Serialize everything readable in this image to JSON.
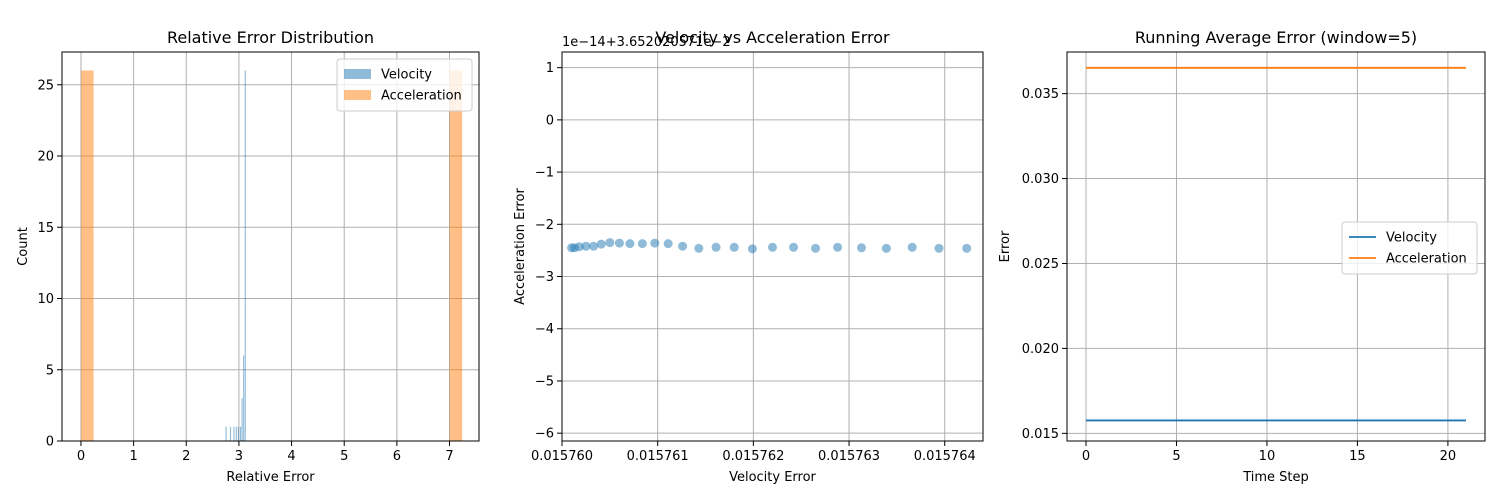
{
  "chart_data": [
    {
      "type": "bar",
      "title": "Relative Error Distribution",
      "xlabel": "Relative Error",
      "ylabel": "Count",
      "xlim": [
        -0.36,
        7.56
      ],
      "ylim": [
        0,
        27.3
      ],
      "xticks": [
        0,
        1,
        2,
        3,
        4,
        5,
        6,
        7
      ],
      "yticks": [
        0,
        5,
        10,
        15,
        20,
        25
      ],
      "grid": true,
      "legend": "top-right",
      "series": [
        {
          "name": "Velocity",
          "color": "#1f77b4",
          "opacity": 0.5,
          "bins": [
            {
              "x0": 2.745,
              "x1": 2.766,
              "count": 1
            },
            {
              "x0": 2.83,
              "x1": 2.851,
              "count": 1
            },
            {
              "x0": 2.895,
              "x1": 2.916,
              "count": 1
            },
            {
              "x0": 2.94,
              "x1": 2.961,
              "count": 1
            },
            {
              "x0": 2.98,
              "x1": 3.001,
              "count": 1
            },
            {
              "x0": 3.02,
              "x1": 3.041,
              "count": 1
            },
            {
              "x0": 3.05,
              "x1": 3.071,
              "count": 3
            },
            {
              "x0": 3.08,
              "x1": 3.101,
              "count": 6
            },
            {
              "x0": 3.11,
              "x1": 3.131,
              "count": 26
            }
          ]
        },
        {
          "name": "Acceleration",
          "color": "#ff7f0e",
          "opacity": 0.5,
          "bins": [
            {
              "x0": 0.0,
              "x1": 0.24,
              "count": 26
            },
            {
              "x0": 7.0,
              "x1": 7.24,
              "count": 26
            }
          ]
        }
      ]
    },
    {
      "type": "scatter",
      "title": "Velocity vs Acceleration Error",
      "xlabel": "Velocity Error",
      "ylabel": "Acceleration Error",
      "offset_text": "1e−14+3.652020571e−2",
      "xlim": [
        0.01576,
        0.0157644
      ],
      "ylim": [
        -6.15,
        1.3
      ],
      "xticks": [
        0.01576,
        0.015761,
        0.015762,
        0.015763,
        0.015764
      ],
      "xtick_labels": [
        "0.015760",
        "0.015761",
        "0.015762",
        "0.015763",
        "0.015764"
      ],
      "yticks": [
        -6,
        -5,
        -4,
        -3,
        -2,
        -1,
        0,
        1
      ],
      "ytick_labels": [
        "−6",
        "−5",
        "−4",
        "−3",
        "−2",
        "−1",
        "0",
        "1"
      ],
      "grid": true,
      "color": "#1f77b4",
      "opacity": 0.5,
      "points": [
        {
          "x": 0.0157601,
          "y": -2.45
        },
        {
          "x": 0.01576013,
          "y": -2.45
        },
        {
          "x": 0.01576018,
          "y": -2.43
        },
        {
          "x": 0.01576025,
          "y": -2.42
        },
        {
          "x": 0.01576033,
          "y": -2.42
        },
        {
          "x": 0.01576041,
          "y": -2.38
        },
        {
          "x": 0.0157605,
          "y": -2.35
        },
        {
          "x": 0.0157606,
          "y": -2.36
        },
        {
          "x": 0.01576071,
          "y": -2.37
        },
        {
          "x": 0.01576084,
          "y": -2.37
        },
        {
          "x": 0.01576097,
          "y": -2.36
        },
        {
          "x": 0.01576111,
          "y": -2.37
        },
        {
          "x": 0.01576126,
          "y": -2.42
        },
        {
          "x": 0.01576143,
          "y": -2.46
        },
        {
          "x": 0.01576161,
          "y": -2.44
        },
        {
          "x": 0.0157618,
          "y": -2.44
        },
        {
          "x": 0.01576199,
          "y": -2.47
        },
        {
          "x": 0.0157622,
          "y": -2.44
        },
        {
          "x": 0.01576242,
          "y": -2.44
        },
        {
          "x": 0.01576265,
          "y": -2.46
        },
        {
          "x": 0.01576288,
          "y": -2.44
        },
        {
          "x": 0.01576313,
          "y": -2.45
        },
        {
          "x": 0.01576339,
          "y": -2.46
        },
        {
          "x": 0.01576366,
          "y": -2.44
        },
        {
          "x": 0.01576394,
          "y": -2.46
        },
        {
          "x": 0.01576423,
          "y": -2.46
        }
      ]
    },
    {
      "type": "line",
      "title": "Running Average Error (window=5)",
      "xlabel": "Time Step",
      "ylabel": "Error",
      "xlim": [
        -1.05,
        22.05
      ],
      "ylim": [
        0.01455,
        0.03745
      ],
      "xticks": [
        0,
        5,
        10,
        15,
        20
      ],
      "yticks": [
        0.015,
        0.02,
        0.025,
        0.03,
        0.035
      ],
      "ytick_labels": [
        "0.015",
        "0.020",
        "0.025",
        "0.030",
        "0.035"
      ],
      "grid": true,
      "legend": "center-right",
      "x": [
        0,
        1,
        2,
        3,
        4,
        5,
        6,
        7,
        8,
        9,
        10,
        11,
        12,
        13,
        14,
        15,
        16,
        17,
        18,
        19,
        20,
        21
      ],
      "series": [
        {
          "name": "Velocity",
          "color": "#1f77b4",
          "values": [
            0.01576,
            0.01576,
            0.01576,
            0.01576,
            0.01576,
            0.01576,
            0.01576,
            0.01576,
            0.01576,
            0.01576,
            0.01576,
            0.01576,
            0.01576,
            0.01576,
            0.01576,
            0.01576,
            0.01576,
            0.01576,
            0.01576,
            0.01576,
            0.01576,
            0.01576
          ]
        },
        {
          "name": "Acceleration",
          "color": "#ff7f0e",
          "values": [
            0.03652,
            0.03652,
            0.03652,
            0.03652,
            0.03652,
            0.03652,
            0.03652,
            0.03652,
            0.03652,
            0.03652,
            0.03652,
            0.03652,
            0.03652,
            0.03652,
            0.03652,
            0.03652,
            0.03652,
            0.03652,
            0.03652,
            0.03652,
            0.03652,
            0.03652
          ]
        }
      ]
    }
  ]
}
